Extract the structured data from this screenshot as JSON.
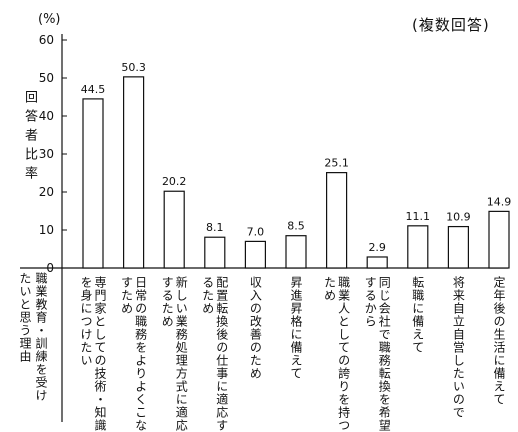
{
  "chart_data": {
    "type": "bar",
    "note": "(複数回答)",
    "yunit": "(%)",
    "ylabel": "回答者比率",
    "xlabel": [
      "職業教育・訓練を受け",
      "たいと思う理由"
    ],
    "ylim": [
      0,
      60
    ],
    "yticks": [
      0,
      10,
      20,
      30,
      40,
      50,
      60
    ],
    "value_labels": [
      "44.5",
      "50.3",
      "20.2",
      "8.1",
      "7.0",
      "8.5",
      "25.1",
      "2.9",
      "11.1",
      "10.9",
      "14.9"
    ],
    "values": [
      44.5,
      50.3,
      20.2,
      8.1,
      7.0,
      8.5,
      25.1,
      2.9,
      11.1,
      10.9,
      14.9
    ],
    "categories": [
      [
        "専門家としての技術・知識",
        "を身につけたい"
      ],
      [
        "日常の職務をよりよくこな",
        "すため"
      ],
      [
        "新しい業務処理方式に適応",
        "するため"
      ],
      [
        "配置転換後の仕事に適応す",
        "るため"
      ],
      [
        "収入の改善のため"
      ],
      [
        "昇進昇格に備えて"
      ],
      [
        "職業人としての誇りを持つ",
        "ため"
      ],
      [
        "同じ会社で職務転換を希望",
        "するから"
      ],
      [
        "転職に備えて"
      ],
      [
        "将来自立自営したいので"
      ],
      [
        "定年後の生活に備えて"
      ]
    ]
  }
}
